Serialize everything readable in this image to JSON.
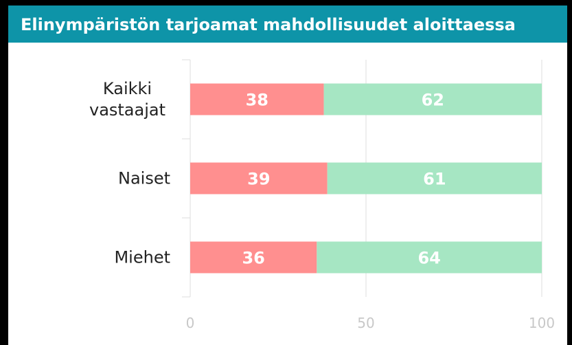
{
  "chart_data": {
    "type": "stacked_bar_horizontal",
    "title": "Elinympäristön tarjoamat mahdollisuudet aloittaessa",
    "categories": [
      "Kaikki vastaajat",
      "Naiset",
      "Miehet"
    ],
    "series": [
      {
        "color": "#ff8f8f",
        "values": [
          38,
          39,
          36
        ]
      },
      {
        "color": "#a6e6c3",
        "values": [
          62,
          61,
          64
        ]
      }
    ],
    "xlim": [
      0,
      100
    ],
    "xticks": [
      0,
      50,
      100
    ],
    "grid": true
  }
}
